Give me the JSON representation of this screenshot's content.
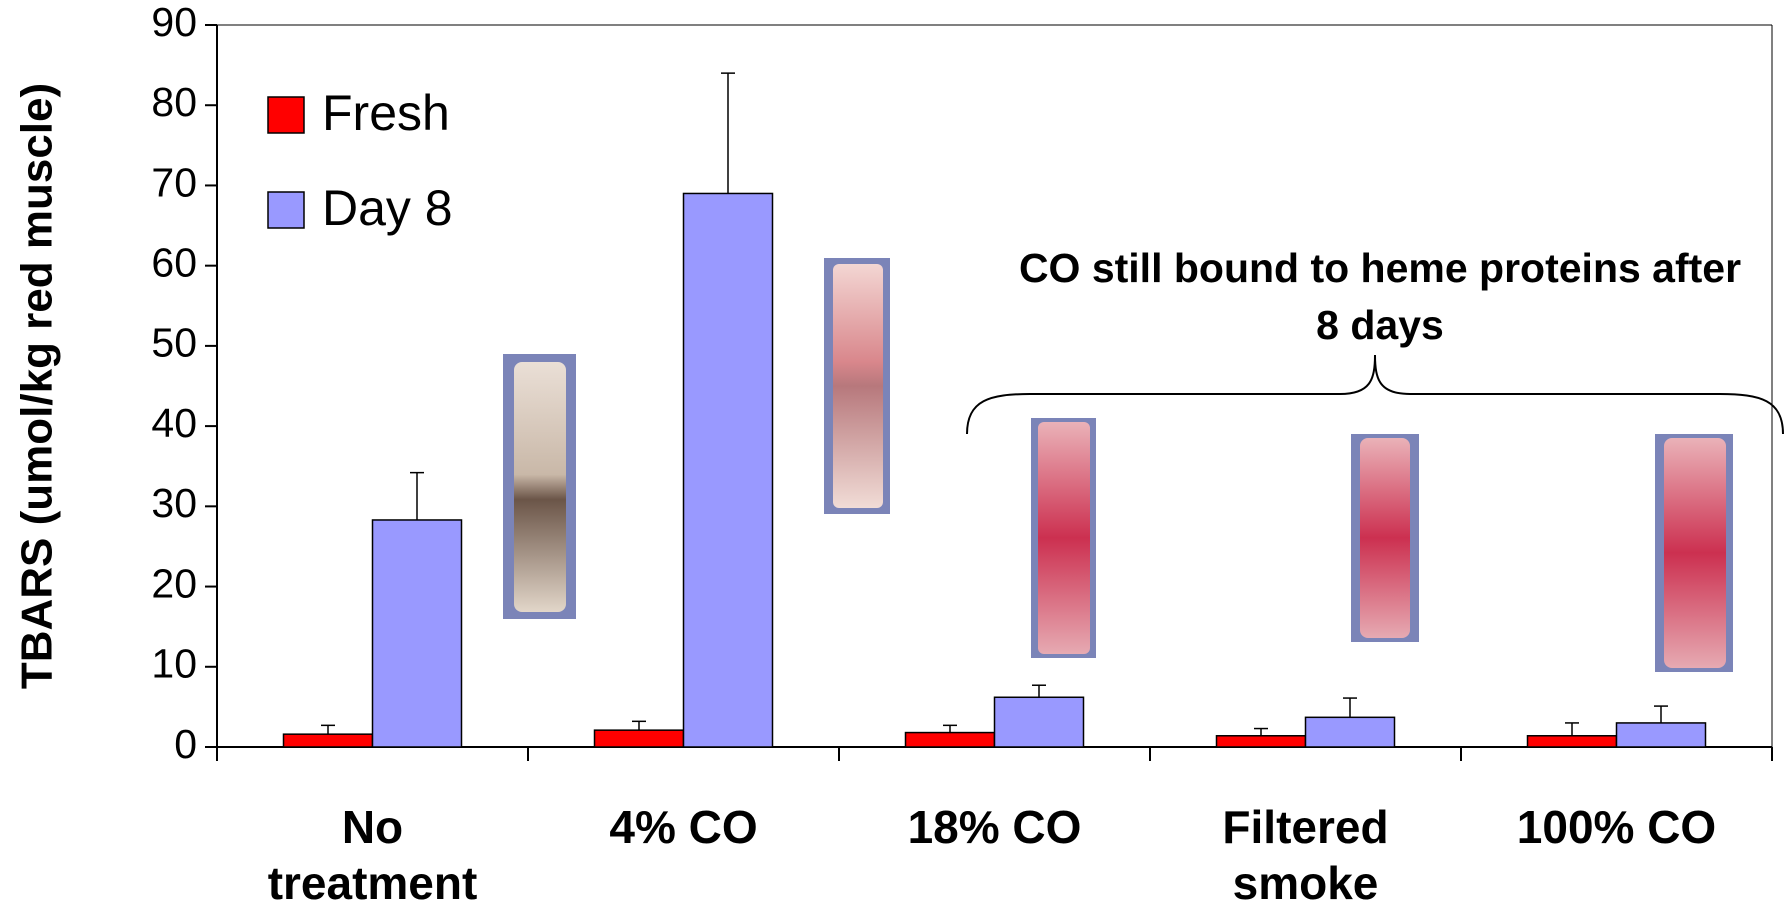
{
  "chart_data": {
    "type": "bar",
    "y_label": "TBARS (umol/kg red muscle)",
    "annotation": "CO still bound to heme proteins after 8 days",
    "categories": [
      "No treatment",
      "4% CO",
      "18% CO",
      "Filtered smoke",
      "100% CO"
    ],
    "series": [
      {
        "name": "Fresh",
        "color": "#ff0000",
        "values": [
          1.6,
          2.1,
          1.8,
          1.4,
          1.4
        ],
        "errors": [
          1.1,
          1.1,
          0.9,
          0.9,
          1.6
        ]
      },
      {
        "name": "Day 8",
        "color": "#9999ff",
        "values": [
          28.3,
          69,
          6.2,
          3.7,
          3.0
        ],
        "errors": [
          5.9,
          15,
          1.5,
          2.4,
          2.1
        ]
      }
    ],
    "ylim": [
      0,
      90
    ],
    "yticks": [
      0,
      10,
      20,
      30,
      40,
      50,
      60,
      70,
      80,
      90
    ],
    "legend": "top-left"
  }
}
